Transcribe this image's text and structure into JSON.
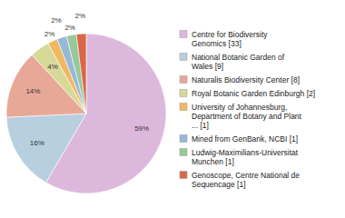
{
  "chart_data": {
    "type": "pie",
    "categories": [
      "Centre for Biodiversity\nGenomics [33]",
      "National Botanic Garden of\nWales [9]",
      "Naturalis Biodiversity Center [8]",
      "Royal Botanic Garden Edinburgh [2]",
      "University of Johannesburg,\nDepartment of Botany and Plant\n... [1]",
      "Mined from GenBank, NCBI [1]",
      "Ludwig-Maximilians-Universitat\nMunchen [1]",
      "Genoscope, Centre National de\nSequencage [1]"
    ],
    "values": [
      59,
      16,
      14,
      4,
      2,
      2,
      2,
      2
    ],
    "value_labels": [
      "59%",
      "16%",
      "14%",
      "4%",
      "2%",
      "2%",
      "2%",
      "2%"
    ],
    "colors": [
      "#ddb8dd",
      "#b8cfe0",
      "#e8a898",
      "#d8d898",
      "#f0b860",
      "#98b8d8",
      "#98c898",
      "#d86848"
    ],
    "data_labels": true
  }
}
